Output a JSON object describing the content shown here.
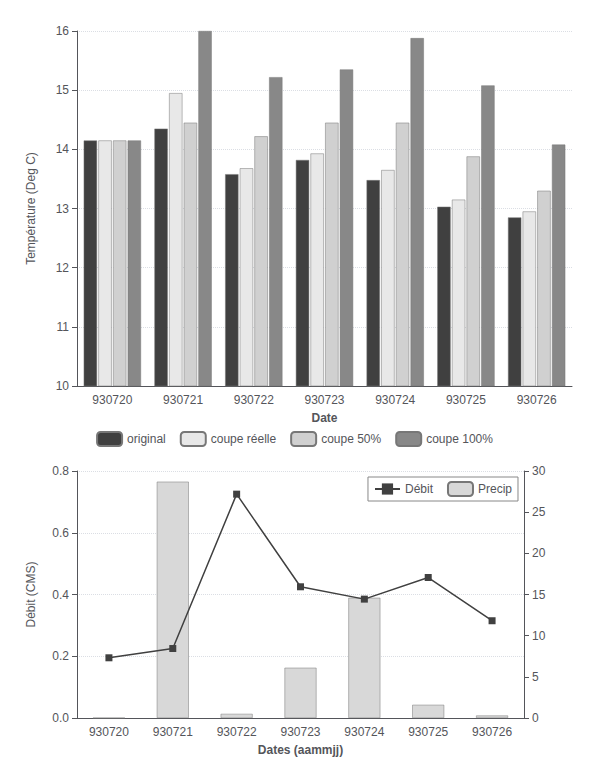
{
  "chart_data": [
    {
      "type": "bar",
      "xlabel": "Date",
      "ylabel": "Température (Deg C)",
      "categories": [
        "930720",
        "930721",
        "930722",
        "930723",
        "930724",
        "930725",
        "930726"
      ],
      "series": [
        {
          "name": "original",
          "color": "#404040",
          "values": [
            14.15,
            14.35,
            13.58,
            13.82,
            13.48,
            13.03,
            12.85
          ]
        },
        {
          "name": "coupe réelle",
          "color": "#e8e8e8",
          "values": [
            14.15,
            14.95,
            13.68,
            13.93,
            13.65,
            13.15,
            12.95
          ]
        },
        {
          "name": "coupe 50%",
          "color": "#d0d0d0",
          "values": [
            14.15,
            14.45,
            14.22,
            14.45,
            14.45,
            13.88,
            13.3
          ]
        },
        {
          "name": "coupe 100%",
          "color": "#888888",
          "values": [
            14.15,
            16.0,
            15.22,
            15.35,
            15.88,
            15.08,
            14.08
          ]
        }
      ],
      "ylim": [
        10,
        16
      ],
      "yticks": [
        10,
        11,
        12,
        13,
        14,
        15,
        16
      ],
      "grid": true,
      "legend": "bottom"
    },
    {
      "type": "line",
      "xlabel": "Dates (aammjj)",
      "ylabel": "Débit (CMS)",
      "categories": [
        "930720",
        "930721",
        "930722",
        "930723",
        "930724",
        "930725",
        "930726"
      ],
      "series": [
        {
          "name": "Débit",
          "type": "line",
          "color": "#404040",
          "marker": "square",
          "values": [
            0.195,
            0.225,
            0.725,
            0.425,
            0.385,
            0.455,
            0.315
          ]
        },
        {
          "name": "Precip",
          "type": "bar",
          "axis": "y2",
          "color": "#d8d8d8",
          "values": [
            0.0,
            28.7,
            0.5,
            6.1,
            14.6,
            1.6,
            0.3
          ]
        }
      ],
      "ylim": [
        0,
        0.8
      ],
      "yticks": [
        {
          "value": 0,
          "label": "0.0"
        },
        0.2,
        0.4,
        0.6,
        0.8
      ],
      "y2lim": [
        0,
        30
      ],
      "y2ticks": [
        0,
        5,
        10,
        15,
        20,
        25,
        30
      ],
      "grid": true,
      "legend": "upper right"
    }
  ]
}
